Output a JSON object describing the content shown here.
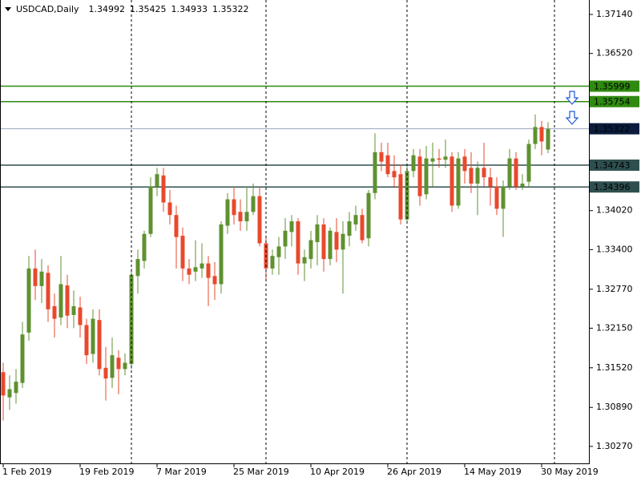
{
  "chart_data": {
    "type": "candlestick",
    "title": "USDCAD,Daily",
    "up_color": "#5f9130",
    "down_color": "#e8492d",
    "categories": [
      "1 Feb 2019",
      null,
      null,
      null,
      null,
      null,
      null,
      null,
      null,
      null,
      null,
      null,
      "19 Feb 2019",
      null,
      null,
      null,
      null,
      null,
      null,
      null,
      null,
      null,
      null,
      null,
      "7 Mar 2019",
      null,
      null,
      null,
      null,
      null,
      null,
      null,
      null,
      null,
      null,
      null,
      "25 Mar 2019",
      null,
      null,
      null,
      null,
      null,
      null,
      null,
      null,
      null,
      null,
      null,
      "10 Apr 2019",
      null,
      null,
      null,
      null,
      null,
      null,
      null,
      null,
      null,
      null,
      null,
      "26 Apr 2019",
      null,
      null,
      null,
      null,
      null,
      null,
      null,
      null,
      null,
      null,
      null,
      "14 May 2019",
      null,
      null,
      null,
      null,
      null,
      null,
      null,
      null,
      null,
      null,
      null,
      "30 May 2019",
      null
    ],
    "open": [
      1.3145,
      1.3105,
      1.3112,
      1.3128,
      1.3208,
      1.331,
      1.3282,
      1.3303,
      1.325,
      1.3232,
      1.3283,
      1.3236,
      1.3248,
      1.322,
      1.3174,
      1.3228,
      1.3152,
      1.3136,
      1.3168,
      1.315,
      1.3158,
      1.3298,
      1.3322,
      1.3365,
      1.344,
      1.3458,
      1.3415,
      1.3395,
      1.3362,
      1.331,
      1.3305,
      1.331,
      1.3318,
      1.3298,
      1.3285,
      1.3378,
      1.342,
      1.34,
      1.3385,
      1.34,
      1.3425,
      1.335,
      1.331,
      1.3328,
      1.3345,
      1.3368,
      1.3385,
      1.3318,
      1.3325,
      1.3352,
      1.338,
      1.3325,
      1.3368,
      1.334,
      1.3362,
      1.338,
      1.3395,
      1.3358,
      1.343,
      1.3495,
      1.349,
      1.3465,
      1.346,
      1.3388,
      1.3465,
      1.3488,
      1.3428,
      1.348,
      1.3485,
      1.3483,
      1.3488,
      1.341,
      1.3488,
      1.347,
      1.3445,
      1.347,
      1.3455,
      1.344,
      1.3405,
      1.344,
      1.3485,
      1.344,
      1.3448,
      1.3508,
      1.3535,
      1.34992
    ],
    "high": [
      1.316,
      1.314,
      1.315,
      1.3225,
      1.333,
      1.334,
      1.3325,
      1.3315,
      1.327,
      1.333,
      1.33,
      1.3275,
      1.3265,
      1.323,
      1.3245,
      1.3245,
      1.3185,
      1.32,
      1.318,
      1.3175,
      1.331,
      1.334,
      1.337,
      1.3455,
      1.347,
      1.347,
      1.3435,
      1.341,
      1.3375,
      1.3325,
      1.3355,
      1.335,
      1.333,
      1.332,
      1.3385,
      1.343,
      1.344,
      1.342,
      1.344,
      1.3445,
      1.344,
      1.336,
      1.334,
      1.336,
      1.339,
      1.3395,
      1.339,
      1.334,
      1.337,
      1.3395,
      1.339,
      1.3375,
      1.339,
      1.3385,
      1.34,
      1.341,
      1.3405,
      1.3435,
      1.3525,
      1.351,
      1.351,
      1.349,
      1.3475,
      1.3475,
      1.35,
      1.35,
      1.3505,
      1.351,
      1.35,
      1.3515,
      1.3495,
      1.3495,
      1.35,
      1.3495,
      1.348,
      1.351,
      1.347,
      1.3455,
      1.345,
      1.35,
      1.3495,
      1.346,
      1.3515,
      1.3555,
      1.3545,
      1.35425
    ],
    "low": [
      1.3068,
      1.3085,
      1.3095,
      1.312,
      1.3195,
      1.326,
      1.3255,
      1.3225,
      1.32,
      1.322,
      1.3215,
      1.3215,
      1.32,
      1.3158,
      1.316,
      1.314,
      1.31,
      1.312,
      1.311,
      1.314,
      1.315,
      1.327,
      1.331,
      1.336,
      1.3425,
      1.34,
      1.338,
      1.331,
      1.329,
      1.3285,
      1.329,
      1.3295,
      1.325,
      1.326,
      1.327,
      1.3365,
      1.338,
      1.337,
      1.337,
      1.3395,
      1.3345,
      1.329,
      1.33,
      1.33,
      1.3325,
      1.3345,
      1.33,
      1.329,
      1.331,
      1.3315,
      1.3305,
      1.3315,
      1.332,
      1.327,
      1.3345,
      1.337,
      1.335,
      1.3345,
      1.342,
      1.3465,
      1.3455,
      1.344,
      1.338,
      1.3385,
      1.3455,
      1.341,
      1.342,
      1.344,
      1.347,
      1.347,
      1.34,
      1.3405,
      1.3445,
      1.343,
      1.3395,
      1.344,
      1.341,
      1.3395,
      1.336,
      1.3435,
      1.3435,
      1.3435,
      1.344,
      1.35,
      1.349,
      1.34933
    ],
    "close": [
      1.3108,
      1.3118,
      1.313,
      1.3205,
      1.331,
      1.3282,
      1.3305,
      1.3245,
      1.323,
      1.3285,
      1.3235,
      1.325,
      1.322,
      1.3172,
      1.323,
      1.315,
      1.3135,
      1.3172,
      1.315,
      1.316,
      1.33,
      1.3325,
      1.3365,
      1.344,
      1.346,
      1.3415,
      1.3395,
      1.336,
      1.331,
      1.33,
      1.3312,
      1.3318,
      1.3295,
      1.3285,
      1.338,
      1.342,
      1.3395,
      1.3385,
      1.34,
      1.3425,
      1.335,
      1.331,
      1.333,
      1.3345,
      1.337,
      1.3385,
      1.3318,
      1.3328,
      1.3355,
      1.338,
      1.3325,
      1.337,
      1.334,
      1.3365,
      1.3385,
      1.3395,
      1.3355,
      1.343,
      1.3495,
      1.348,
      1.346,
      1.3455,
      1.3388,
      1.3465,
      1.349,
      1.3425,
      1.3485,
      1.3485,
      1.3483,
      1.3488,
      1.341,
      1.3485,
      1.3465,
      1.3445,
      1.347,
      1.3455,
      1.344,
      1.3405,
      1.344,
      1.3485,
      1.344,
      1.3445,
      1.3508,
      1.3535,
      1.3512,
      1.35322
    ],
    "ylim": [
      1.3,
      1.3737
    ],
    "yticks": [
      {
        "value": 1.3714,
        "label": "1.37140"
      },
      {
        "value": 1.3652,
        "label": "1.36520"
      },
      {
        "value": 1.3402,
        "label": "1.34020"
      },
      {
        "value": 1.334,
        "label": "1.33400"
      },
      {
        "value": 1.3277,
        "label": "1.32770"
      },
      {
        "value": 1.3215,
        "label": "1.32150"
      },
      {
        "value": 1.3152,
        "label": "1.31520"
      },
      {
        "value": 1.3089,
        "label": "1.30890"
      },
      {
        "value": 1.3027,
        "label": "1.30270"
      }
    ],
    "levels": [
      {
        "value": 1.35999,
        "color": "#2f8a10"
      },
      {
        "value": 1.35754,
        "color": "#2f8a10"
      },
      {
        "value": 1.34743,
        "color": "#2f4f4f"
      },
      {
        "value": 1.34396,
        "color": "#2f4f4f"
      }
    ]
  }
}
